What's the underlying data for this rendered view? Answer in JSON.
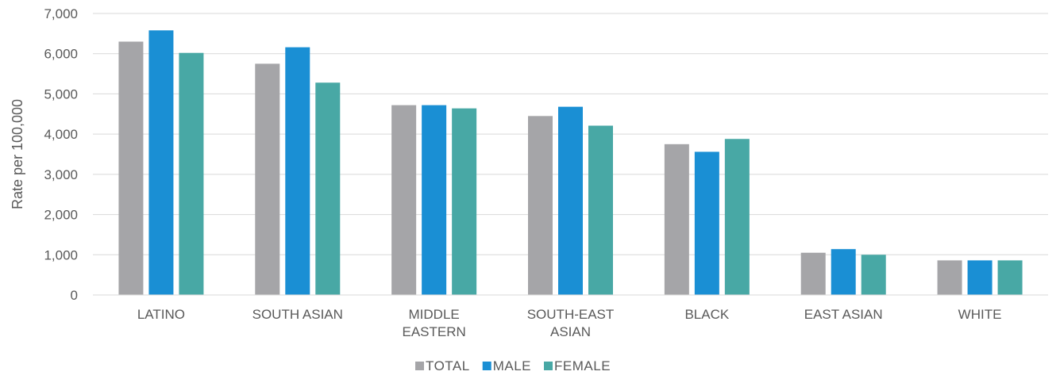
{
  "chart_data": {
    "type": "bar",
    "title": "",
    "xlabel": "",
    "ylabel": "Rate per 100,000",
    "ylim": [
      0,
      7000
    ],
    "yticks": [
      "0",
      "1,000",
      "2,000",
      "3,000",
      "4,000",
      "5,000",
      "6,000",
      "7,000"
    ],
    "grid": true,
    "legend_position": "bottom",
    "categories": [
      [
        "LATINO"
      ],
      [
        "SOUTH ASIAN"
      ],
      [
        "MIDDLE",
        "EASTERN"
      ],
      [
        "SOUTH-EAST",
        "ASIAN"
      ],
      [
        "BLACK"
      ],
      [
        "EAST ASIAN"
      ],
      [
        "WHITE"
      ]
    ],
    "series": [
      {
        "name": "TOTAL",
        "color": "#a5a5a8",
        "values": [
          6300,
          5750,
          4720,
          4450,
          3750,
          1050,
          860
        ]
      },
      {
        "name": "MALE",
        "color": "#1a8fd4",
        "values": [
          6580,
          6160,
          4720,
          4680,
          3560,
          1140,
          860
        ]
      },
      {
        "name": "FEMALE",
        "color": "#48a8a5",
        "values": [
          6020,
          5280,
          4640,
          4210,
          3880,
          1000,
          860
        ]
      }
    ]
  }
}
